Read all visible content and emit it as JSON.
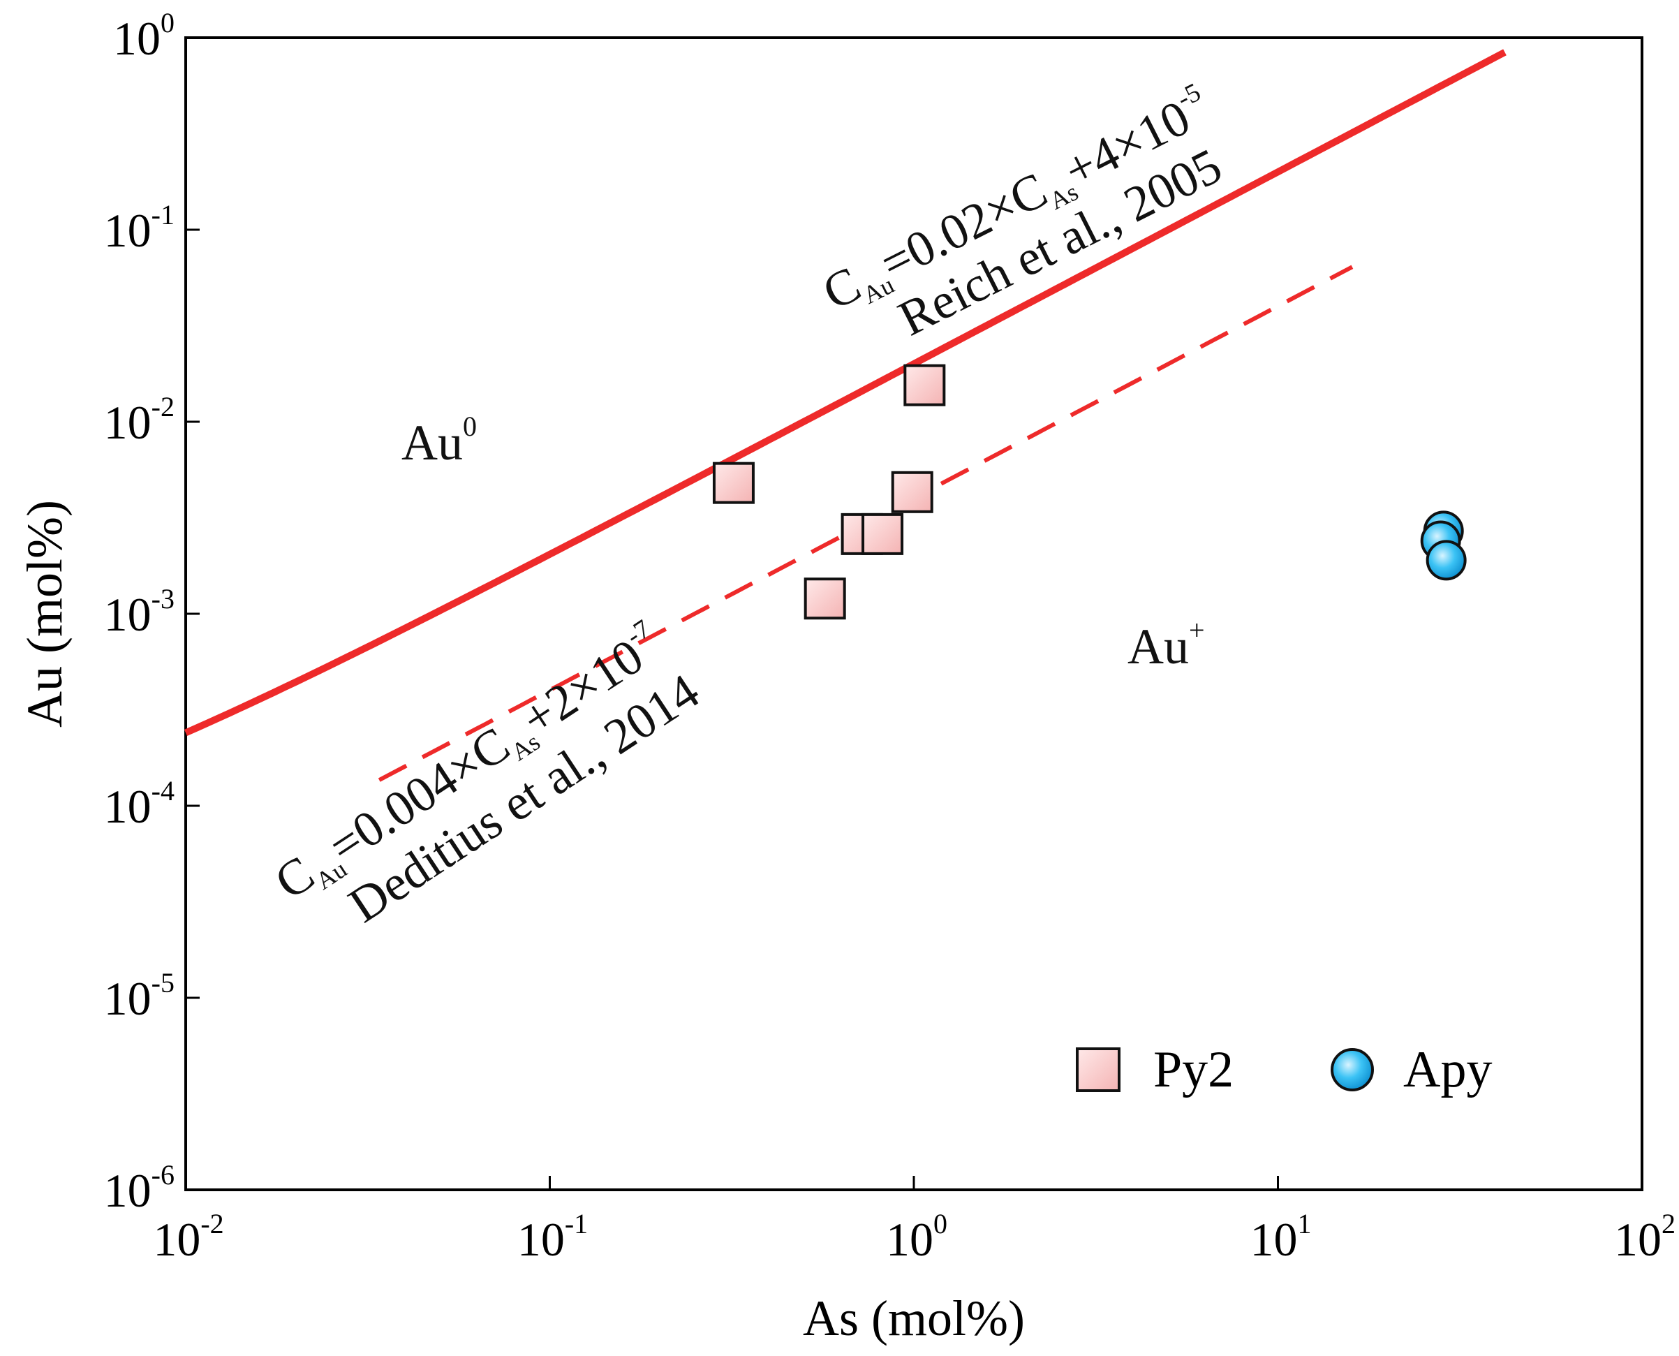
{
  "chart_data": {
    "type": "scatter",
    "title": "",
    "xlabel": "As (mol%)",
    "ylabel": "Au (mol%)",
    "xscale": "log",
    "yscale": "log",
    "xlim": [
      0.01,
      100
    ],
    "ylim": [
      1e-06,
      1
    ],
    "x_ticks": [
      {
        "value": 0.01,
        "base": "10",
        "exp": "-2"
      },
      {
        "value": 0.1,
        "base": "10",
        "exp": "-1"
      },
      {
        "value": 1,
        "base": "10",
        "exp": "0"
      },
      {
        "value": 10,
        "base": "10",
        "exp": "1"
      },
      {
        "value": 100,
        "base": "10",
        "exp": "2"
      }
    ],
    "y_ticks": [
      {
        "value": 1e-06,
        "base": "10",
        "exp": "-6"
      },
      {
        "value": 1e-05,
        "base": "10",
        "exp": "-5"
      },
      {
        "value": 0.0001,
        "base": "10",
        "exp": "-4"
      },
      {
        "value": 0.001,
        "base": "10",
        "exp": "-3"
      },
      {
        "value": 0.01,
        "base": "10",
        "exp": "-2"
      },
      {
        "value": 0.1,
        "base": "10",
        "exp": "-1"
      },
      {
        "value": 1,
        "base": "10",
        "exp": "0"
      }
    ],
    "series": [
      {
        "name": "Py2",
        "marker": "square",
        "fill": "#f9c8c8",
        "points": [
          {
            "x": 0.32,
            "y": 0.0048
          },
          {
            "x": 0.57,
            "y": 0.0012
          },
          {
            "x": 0.72,
            "y": 0.0026
          },
          {
            "x": 0.82,
            "y": 0.0026
          },
          {
            "x": 0.99,
            "y": 0.0043
          },
          {
            "x": 1.07,
            "y": 0.0155
          }
        ]
      },
      {
        "name": "Apy",
        "marker": "circle",
        "fill": "#29b6f0",
        "points": [
          {
            "x": 28.5,
            "y": 0.0027
          },
          {
            "x": 28.0,
            "y": 0.0024
          },
          {
            "x": 29.0,
            "y": 0.0019
          }
        ]
      }
    ],
    "lines": [
      {
        "name": "Reich et al., 2005",
        "style": "solid",
        "color": "#ee2a2a",
        "slope": 0.02,
        "intercept": 4e-05,
        "x_range": [
          0.01,
          42
        ]
      },
      {
        "name": "Deditius et al., 2014",
        "style": "dashed",
        "color": "#ee2a2a",
        "slope": 0.004,
        "intercept": 2e-07,
        "x_range": [
          0.034,
          16
        ]
      }
    ],
    "annotations": {
      "reich_eq": {
        "c": "C",
        "au": "Au",
        "mid": "=0.02×C",
        "as": "As",
        "tail": "+4×10",
        "exp": "-5"
      },
      "reich_ref": "Reich et al., 2005",
      "deditius_eq": {
        "c": "C",
        "au": "Au",
        "mid": "=0.004×C",
        "as": "As",
        "tail": "+2×10",
        "exp": "-7"
      },
      "deditius_ref": "Deditius et al., 2014",
      "au0": {
        "base": "Au",
        "sup": "0"
      },
      "auplus": {
        "base": "Au",
        "sup": "+"
      }
    },
    "legend": {
      "placement": "bottom-right",
      "items": [
        "Py2",
        "Apy"
      ]
    }
  }
}
